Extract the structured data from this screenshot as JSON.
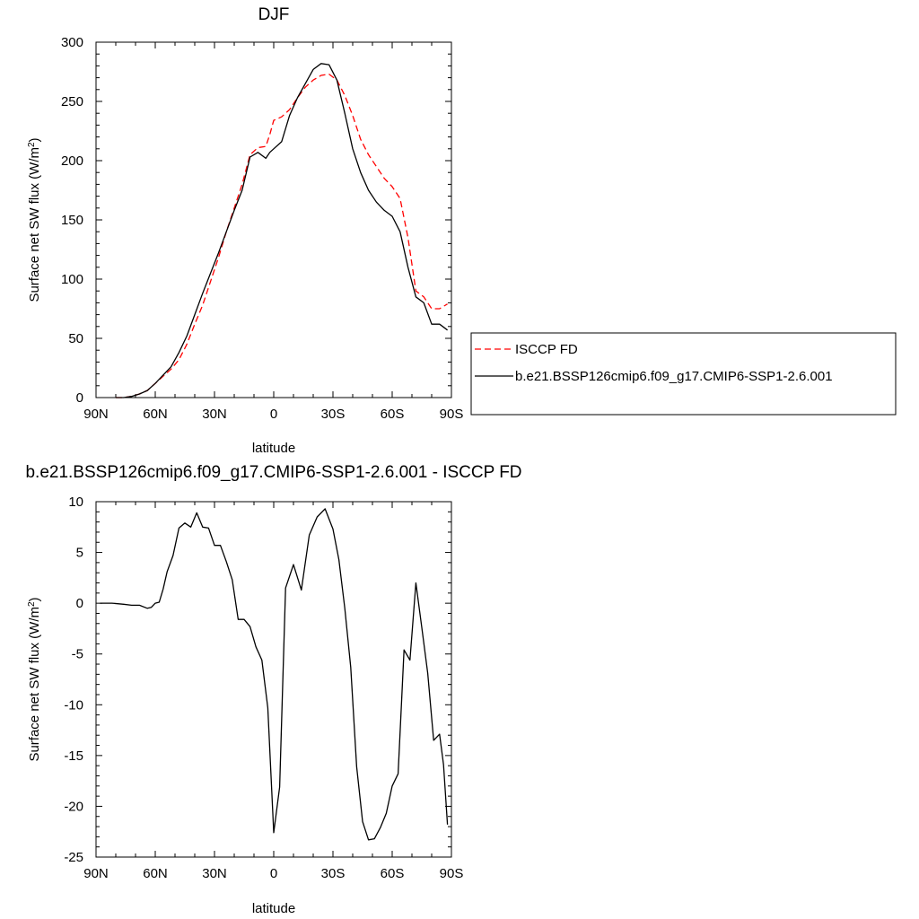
{
  "chart_data": [
    {
      "type": "line",
      "title": "DJF",
      "xlabel": "latitude",
      "ylabel": "Surface net SW flux (W/m²)",
      "xlim": [
        90,
        -90
      ],
      "ylim": [
        0,
        300
      ],
      "x_ticks": [
        {
          "value": 90,
          "label": "90N"
        },
        {
          "value": 60,
          "label": "60N"
        },
        {
          "value": 30,
          "label": "30N"
        },
        {
          "value": 0,
          "label": "0"
        },
        {
          "value": -30,
          "label": "30S"
        },
        {
          "value": -60,
          "label": "60S"
        },
        {
          "value": -90,
          "label": "90S"
        }
      ],
      "y_ticks": [
        0,
        50,
        100,
        150,
        200,
        250,
        300
      ],
      "legend_position": "right",
      "series": [
        {
          "name": "ISCCP FD",
          "color": "#ff0000",
          "style": "dashed",
          "x": [
            80,
            76,
            72,
            68,
            64,
            60,
            56,
            52,
            48,
            44,
            40,
            36,
            32,
            28,
            24,
            20,
            16,
            12,
            8,
            4,
            2,
            0,
            -4,
            -8,
            -12,
            -16,
            -20,
            -24,
            -28,
            -32,
            -36,
            -40,
            -44,
            -48,
            -52,
            -56,
            -60,
            -64,
            -68,
            -72,
            -76,
            -80,
            -84,
            -88
          ],
          "y": [
            0,
            0,
            1,
            3,
            6,
            12,
            18,
            24,
            32,
            45,
            62,
            78,
            98,
            118,
            140,
            160,
            180,
            205,
            211,
            212,
            222,
            234,
            237,
            243,
            253,
            262,
            268,
            272,
            273,
            268,
            255,
            238,
            218,
            205,
            195,
            185,
            178,
            168,
            135,
            90,
            85,
            75,
            75,
            79
          ]
        },
        {
          "name": "b.e21.BSSP126cmip6.f09_g17.CMIP6-SSP1-2.6.001",
          "color": "#000000",
          "style": "solid",
          "x": [
            80,
            76,
            72,
            68,
            64,
            60,
            56,
            52,
            48,
            44,
            40,
            36,
            32,
            28,
            24,
            20,
            16,
            12,
            8,
            4,
            2,
            0,
            -4,
            -8,
            -12,
            -16,
            -20,
            -24,
            -28,
            -32,
            -36,
            -40,
            -44,
            -48,
            -52,
            -56,
            -60,
            -64,
            -68,
            -72,
            -76,
            -80,
            -84,
            -88
          ],
          "y": [
            0,
            0,
            1,
            3,
            6,
            12,
            19,
            26,
            38,
            52,
            70,
            88,
            105,
            122,
            140,
            158,
            175,
            203,
            207,
            202,
            207,
            210,
            216,
            238,
            253,
            265,
            277,
            282,
            281,
            268,
            240,
            210,
            190,
            175,
            165,
            158,
            153,
            140,
            110,
            85,
            80,
            62,
            62,
            57
          ]
        }
      ]
    },
    {
      "type": "line",
      "title": "b.e21.BSSP126cmip6.f09_g17.CMIP6-SSP1-2.6.001 - ISCCP FD",
      "xlabel": "latitude",
      "ylabel": "Surface net SW flux (W/m²)",
      "xlim": [
        90,
        -90
      ],
      "ylim": [
        -25,
        10
      ],
      "x_ticks": [
        {
          "value": 90,
          "label": "90N"
        },
        {
          "value": 60,
          "label": "60N"
        },
        {
          "value": 30,
          "label": "30N"
        },
        {
          "value": 0,
          "label": "0"
        },
        {
          "value": -30,
          "label": "30S"
        },
        {
          "value": -60,
          "label": "60S"
        },
        {
          "value": -90,
          "label": "90S"
        }
      ],
      "y_ticks": [
        -25,
        -20,
        -15,
        -10,
        -5,
        0,
        5,
        10
      ],
      "series": [
        {
          "color": "#000000",
          "style": "solid",
          "x": [
            88,
            82,
            76,
            72,
            68,
            64,
            62,
            60,
            58,
            56,
            54,
            51,
            48,
            45,
            42,
            39,
            36,
            33,
            30,
            27,
            24,
            21,
            18,
            15,
            12,
            9,
            6,
            3,
            0,
            -3,
            -6,
            -10,
            -14,
            -18,
            -22,
            -26,
            -30,
            -33,
            -36,
            -39,
            -42,
            -45,
            -48,
            -51,
            -54,
            -57,
            -60,
            -63,
            -66,
            -69,
            -72,
            -75,
            -78,
            -81,
            -84,
            -86,
            -88
          ],
          "y": [
            0,
            0,
            -0.1,
            -0.2,
            -0.2,
            -0.5,
            -0.4,
            0,
            0.1,
            1.4,
            3.1,
            4.7,
            7.4,
            7.9,
            7.5,
            8.9,
            7.5,
            7.4,
            5.7,
            5.7,
            4.1,
            2.3,
            -1.6,
            -1.6,
            -2.3,
            -4.3,
            -5.6,
            -10.3,
            -22.6,
            -18.1,
            1.5,
            3.8,
            1.3,
            6.7,
            8.5,
            9.3,
            7.3,
            4.3,
            -0.5,
            -6.3,
            -16.1,
            -21.5,
            -23.3,
            -23.2,
            -22.1,
            -20.7,
            -18.0,
            -16.8,
            -4.6,
            -5.6,
            2.0,
            -2.4,
            -6.9,
            -13.5,
            -12.9,
            -15.9,
            -21.8
          ]
        }
      ]
    }
  ]
}
